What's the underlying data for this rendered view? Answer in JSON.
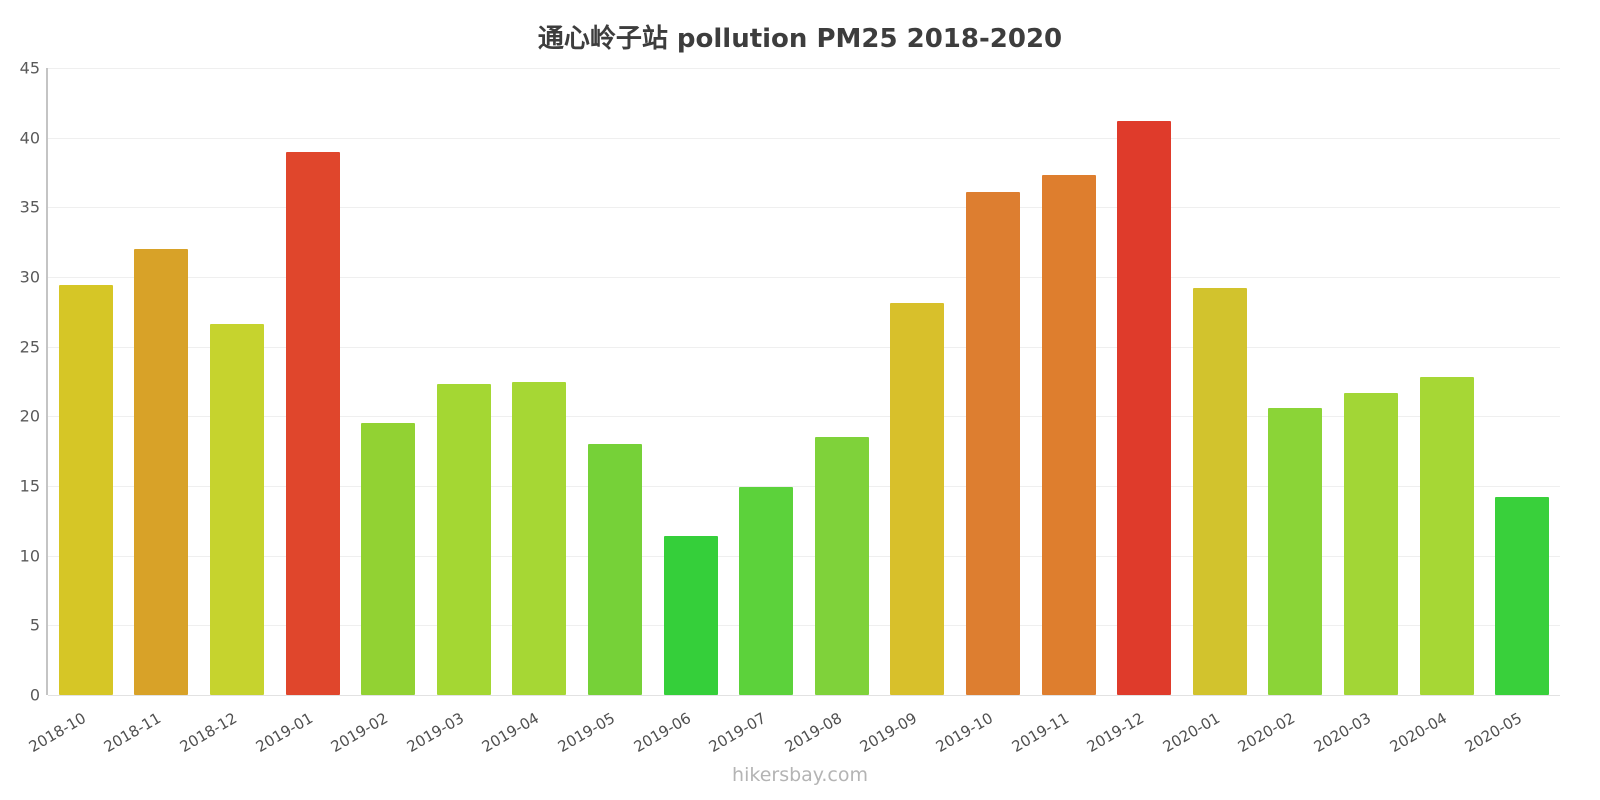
{
  "header": {
    "title": "通心岭子站 pollution PM25 2018-2020"
  },
  "footer": {
    "watermark": "hikersbay.com"
  },
  "chart_data": {
    "type": "bar",
    "title": "通心岭子站 pollution PM25 2018-2020",
    "xlabel": "",
    "ylabel": "",
    "ylim": [
      0,
      45
    ],
    "yticks": [
      0,
      5,
      10,
      15,
      20,
      25,
      30,
      35,
      40,
      45
    ],
    "grid": true,
    "legend_position": "none",
    "categories": [
      "2018-10",
      "2018-11",
      "2018-12",
      "2019-01",
      "2019-02",
      "2019-03",
      "2019-04",
      "2019-05",
      "2019-06",
      "2019-07",
      "2019-08",
      "2019-09",
      "2019-10",
      "2019-11",
      "2019-12",
      "2020-01",
      "2020-02",
      "2020-03",
      "2020-04",
      "2020-05"
    ],
    "values": [
      29.4,
      32.0,
      26.6,
      39.0,
      19.5,
      22.3,
      22.5,
      18.0,
      11.4,
      14.9,
      18.5,
      28.1,
      36.1,
      37.3,
      41.2,
      29.2,
      20.6,
      21.7,
      22.8,
      14.2
    ],
    "colors": [
      "#d6c626",
      "#d8a228",
      "#c6d32e",
      "#e0462c",
      "#92d233",
      "#a4d733",
      "#a6d734",
      "#76d138",
      "#35cf3a",
      "#5cd23b",
      "#7fd23a",
      "#d8c02b",
      "#dd7e30",
      "#de7e2e",
      "#df3b2b",
      "#d2c32d",
      "#8bd437",
      "#a2d636",
      "#a6d735",
      "#39d03b"
    ]
  }
}
